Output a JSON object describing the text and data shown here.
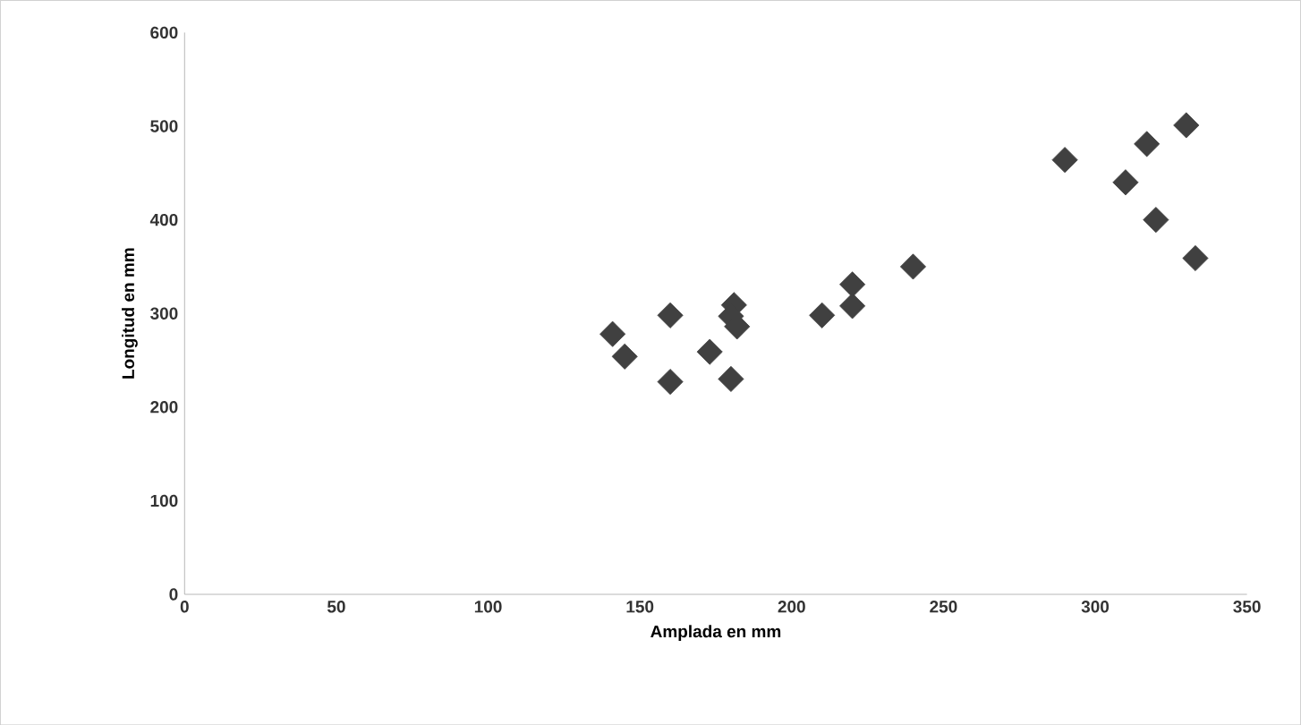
{
  "chart_data": {
    "type": "scatter",
    "xlabel": "Amplada en mm",
    "ylabel": "Longitud en mm",
    "x": [
      141,
      145,
      160,
      160,
      173,
      180,
      181,
      180,
      182,
      210,
      220,
      220,
      240,
      290,
      310,
      317,
      320,
      330,
      333
    ],
    "series": [
      {
        "color": "#404040",
        "values": [
          278,
          254,
          298,
          227,
          259,
          230,
          309,
          297,
          286,
          298,
          331,
          308,
          350,
          464,
          440,
          481,
          400,
          501,
          359
        ]
      }
    ],
    "xlim": [
      0,
      350
    ],
    "ylim": [
      0,
      600
    ],
    "xticks": [
      0,
      50,
      100,
      150,
      200,
      250,
      300,
      350
    ],
    "yticks": [
      0,
      100,
      200,
      300,
      400,
      500,
      600
    ],
    "grid": false,
    "marker": "diamond"
  }
}
